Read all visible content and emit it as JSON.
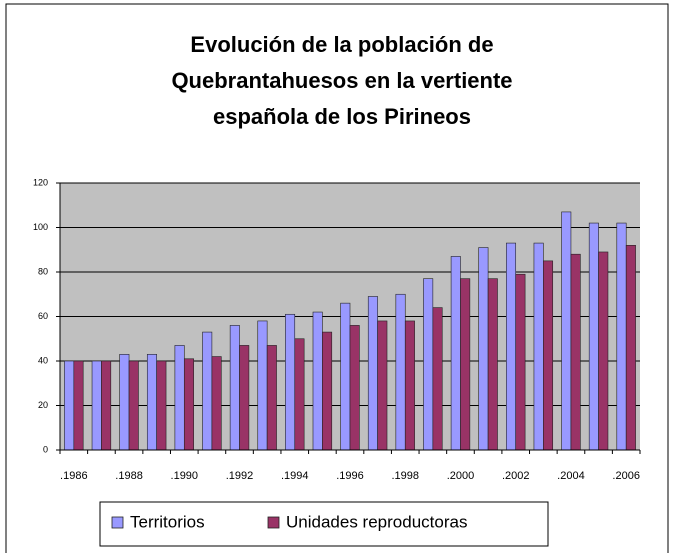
{
  "chart_data": {
    "type": "bar",
    "title": [
      "Evolución de la población de",
      "Quebrantahuesos en la vertiente",
      "española de los Pirineos"
    ],
    "categories": [
      ".1986",
      null,
      ".1988",
      null,
      ".1990",
      null,
      ".1992",
      null,
      ".1994",
      null,
      ".1996",
      null,
      ".1998",
      null,
      ".2000",
      null,
      ".2002",
      null,
      ".2004",
      null,
      ".2006"
    ],
    "series": [
      {
        "name": "Territorios",
        "color": "#9999ff",
        "values": [
          40,
          40,
          43,
          43,
          47,
          53,
          56,
          58,
          61,
          62,
          66,
          69,
          70,
          77,
          87,
          91,
          93,
          93,
          107,
          102,
          102
        ]
      },
      {
        "name": "Unidades reproductoras",
        "color": "#993366",
        "values": [
          40,
          40,
          40,
          40,
          41,
          42,
          47,
          47,
          50,
          53,
          56,
          58,
          58,
          64,
          77,
          77,
          79,
          85,
          88,
          89,
          92
        ]
      }
    ],
    "ylim": [
      0,
      120
    ],
    "yticks": [
      0,
      20,
      40,
      60,
      80,
      100,
      120
    ],
    "grid": true,
    "legend": "bottom"
  }
}
